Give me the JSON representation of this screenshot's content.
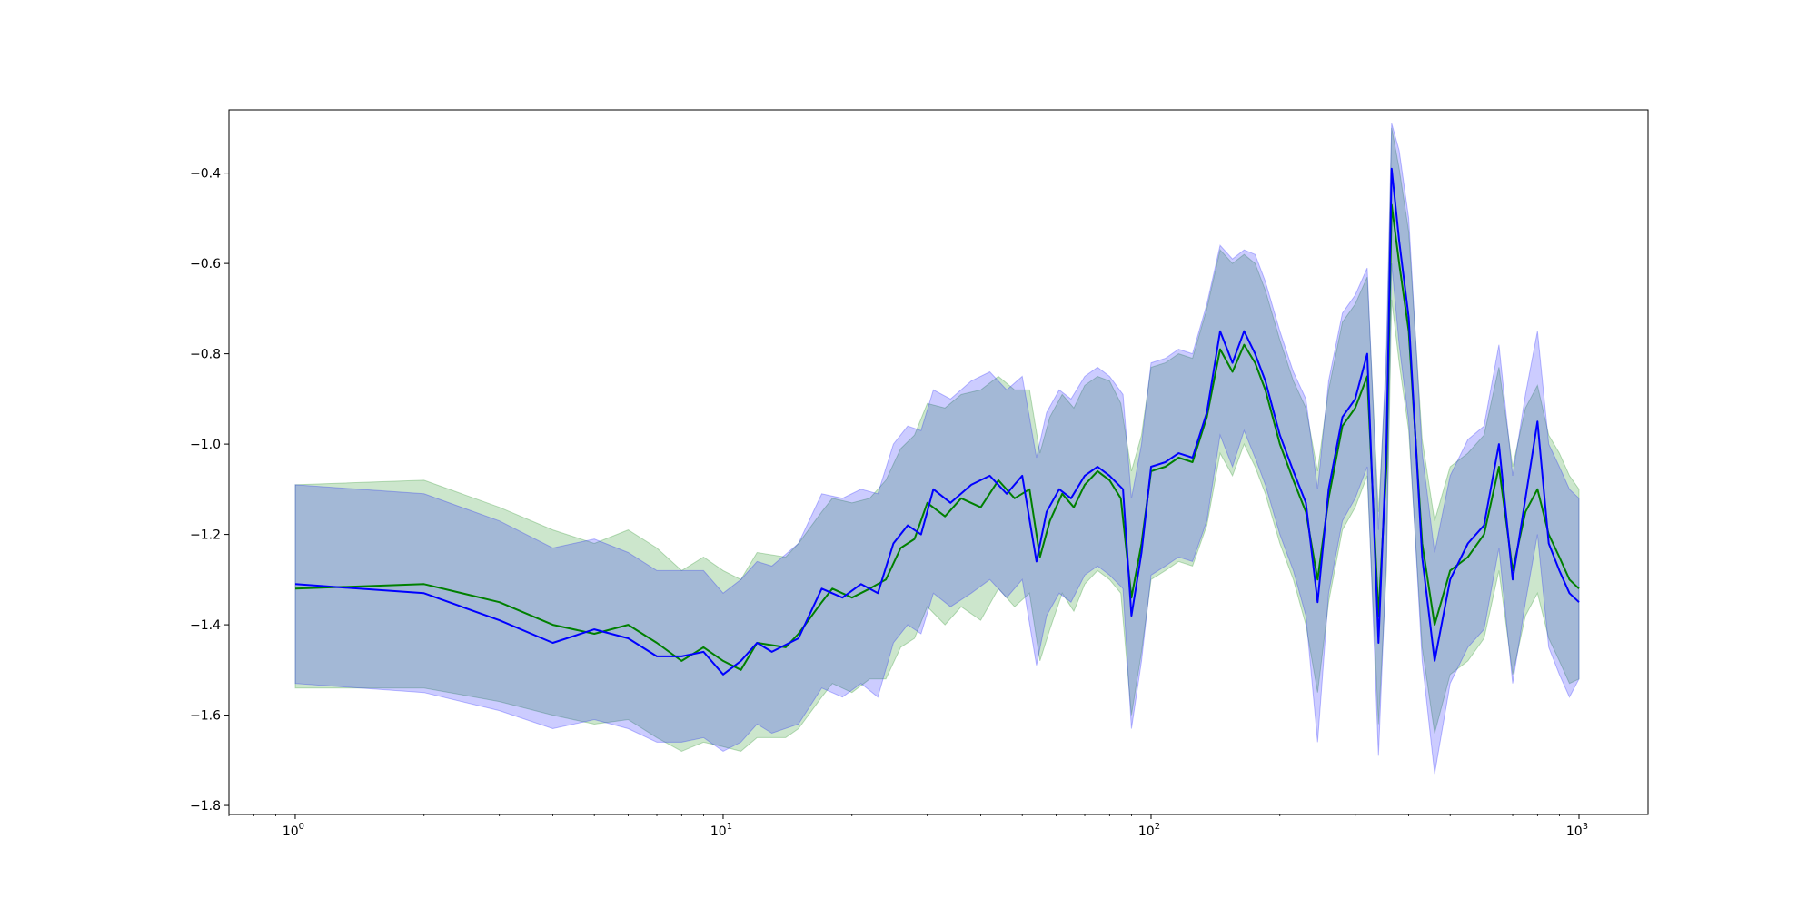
{
  "chart_data": {
    "type": "line",
    "title": "",
    "xlabel": "",
    "ylabel": "",
    "xscale": "log",
    "xlim": [
      0.7,
      1450
    ],
    "ylim": [
      -1.82,
      -0.26
    ],
    "grid": false,
    "legend": "none",
    "x_ticks": [
      {
        "value": 1,
        "base": "10",
        "exp": "0"
      },
      {
        "value": 10,
        "base": "10",
        "exp": "1"
      },
      {
        "value": 100,
        "base": "10",
        "exp": "2"
      },
      {
        "value": 1000,
        "base": "10",
        "exp": "3"
      }
    ],
    "y_ticks": [
      {
        "value": -1.8,
        "label": "−1.8"
      },
      {
        "value": -1.6,
        "label": "−1.6"
      },
      {
        "value": -1.4,
        "label": "−1.4"
      },
      {
        "value": -1.2,
        "label": "−1.2"
      },
      {
        "value": -1.0,
        "label": "−1.0"
      },
      {
        "value": -0.8,
        "label": "−0.8"
      },
      {
        "value": -0.6,
        "label": "−0.6"
      },
      {
        "value": -0.4,
        "label": "−0.4"
      }
    ],
    "series": [
      {
        "color": "#008000",
        "band_color": "#008000",
        "band_opacity": 0.2,
        "points": [
          [
            1,
            -1.32,
            -1.09,
            -1.54
          ],
          [
            2,
            -1.31,
            -1.08,
            -1.54
          ],
          [
            3,
            -1.35,
            -1.14,
            -1.57
          ],
          [
            4,
            -1.4,
            -1.19,
            -1.6
          ],
          [
            5,
            -1.42,
            -1.22,
            -1.62
          ],
          [
            6,
            -1.4,
            -1.19,
            -1.61
          ],
          [
            7,
            -1.44,
            -1.23,
            -1.65
          ],
          [
            8,
            -1.48,
            -1.28,
            -1.68
          ],
          [
            9,
            -1.45,
            -1.25,
            -1.66
          ],
          [
            10,
            -1.48,
            -1.28,
            -1.67
          ],
          [
            11,
            -1.5,
            -1.3,
            -1.68
          ],
          [
            12,
            -1.44,
            -1.24,
            -1.65
          ],
          [
            14,
            -1.45,
            -1.25,
            -1.65
          ],
          [
            15,
            -1.42,
            -1.22,
            -1.63
          ],
          [
            17,
            -1.35,
            -1.15,
            -1.56
          ],
          [
            18,
            -1.32,
            -1.12,
            -1.53
          ],
          [
            20,
            -1.34,
            -1.13,
            -1.55
          ],
          [
            22,
            -1.32,
            -1.12,
            -1.52
          ],
          [
            24,
            -1.3,
            -1.08,
            -1.52
          ],
          [
            26,
            -1.23,
            -1.01,
            -1.45
          ],
          [
            28,
            -1.21,
            -0.98,
            -1.43
          ],
          [
            30,
            -1.13,
            -0.91,
            -1.36
          ],
          [
            33,
            -1.16,
            -0.92,
            -1.4
          ],
          [
            36,
            -1.12,
            -0.89,
            -1.36
          ],
          [
            40,
            -1.14,
            -0.88,
            -1.39
          ],
          [
            44,
            -1.08,
            -0.85,
            -1.32
          ],
          [
            48,
            -1.12,
            -0.88,
            -1.36
          ],
          [
            52,
            -1.1,
            -0.88,
            -1.33
          ],
          [
            55,
            -1.25,
            -1.02,
            -1.48
          ],
          [
            58,
            -1.17,
            -0.94,
            -1.41
          ],
          [
            62,
            -1.11,
            -0.89,
            -1.33
          ],
          [
            66,
            -1.14,
            -0.92,
            -1.37
          ],
          [
            70,
            -1.09,
            -0.87,
            -1.31
          ],
          [
            75,
            -1.06,
            -0.85,
            -1.28
          ],
          [
            80,
            -1.08,
            -0.86,
            -1.3
          ],
          [
            85,
            -1.12,
            -0.91,
            -1.33
          ],
          [
            90,
            -1.34,
            -1.06,
            -1.6
          ],
          [
            95,
            -1.22,
            -0.98,
            -1.46
          ],
          [
            100,
            -1.06,
            -0.83,
            -1.3
          ],
          [
            108,
            -1.05,
            -0.82,
            -1.28
          ],
          [
            116,
            -1.03,
            -0.8,
            -1.26
          ],
          [
            125,
            -1.04,
            -0.81,
            -1.27
          ],
          [
            135,
            -0.94,
            -0.7,
            -1.18
          ],
          [
            145,
            -0.79,
            -0.57,
            -1.02
          ],
          [
            155,
            -0.84,
            -0.6,
            -1.07
          ],
          [
            165,
            -0.78,
            -0.58,
            -1.0
          ],
          [
            175,
            -0.82,
            -0.6,
            -1.05
          ],
          [
            185,
            -0.88,
            -0.66,
            -1.11
          ],
          [
            200,
            -1.0,
            -0.77,
            -1.22
          ],
          [
            215,
            -1.08,
            -0.86,
            -1.3
          ],
          [
            230,
            -1.15,
            -0.92,
            -1.4
          ],
          [
            245,
            -1.3,
            -1.06,
            -1.55
          ],
          [
            260,
            -1.12,
            -0.88,
            -1.35
          ],
          [
            280,
            -0.96,
            -0.73,
            -1.19
          ],
          [
            300,
            -0.92,
            -0.69,
            -1.14
          ],
          [
            320,
            -0.85,
            -0.63,
            -1.07
          ],
          [
            340,
            -1.38,
            -1.15,
            -1.62
          ],
          [
            355,
            -1.05,
            -0.82,
            -1.28
          ],
          [
            365,
            -0.47,
            -0.3,
            -0.68
          ],
          [
            380,
            -0.6,
            -0.39,
            -0.82
          ],
          [
            400,
            -0.75,
            -0.53,
            -0.97
          ],
          [
            430,
            -1.22,
            -0.99,
            -1.45
          ],
          [
            460,
            -1.4,
            -1.17,
            -1.64
          ],
          [
            500,
            -1.28,
            -1.05,
            -1.51
          ],
          [
            550,
            -1.25,
            -1.02,
            -1.48
          ],
          [
            600,
            -1.2,
            -0.98,
            -1.43
          ],
          [
            650,
            -1.05,
            -0.83,
            -1.28
          ],
          [
            700,
            -1.28,
            -1.05,
            -1.51
          ],
          [
            750,
            -1.15,
            -0.92,
            -1.38
          ],
          [
            800,
            -1.1,
            -0.87,
            -1.33
          ],
          [
            850,
            -1.2,
            -0.98,
            -1.43
          ],
          [
            900,
            -1.25,
            -1.02,
            -1.48
          ],
          [
            950,
            -1.3,
            -1.07,
            -1.53
          ],
          [
            1000,
            -1.32,
            -1.1,
            -1.52
          ]
        ]
      },
      {
        "color": "#0000ff",
        "band_color": "#0000ff",
        "band_opacity": 0.2,
        "points": [
          [
            1,
            -1.31,
            -1.09,
            -1.53
          ],
          [
            2,
            -1.33,
            -1.11,
            -1.55
          ],
          [
            3,
            -1.39,
            -1.17,
            -1.59
          ],
          [
            4,
            -1.44,
            -1.23,
            -1.63
          ],
          [
            5,
            -1.41,
            -1.21,
            -1.61
          ],
          [
            6,
            -1.43,
            -1.24,
            -1.63
          ],
          [
            7,
            -1.47,
            -1.28,
            -1.66
          ],
          [
            8,
            -1.47,
            -1.28,
            -1.66
          ],
          [
            9,
            -1.46,
            -1.28,
            -1.65
          ],
          [
            10,
            -1.51,
            -1.33,
            -1.68
          ],
          [
            11,
            -1.48,
            -1.3,
            -1.66
          ],
          [
            12,
            -1.44,
            -1.26,
            -1.62
          ],
          [
            13,
            -1.46,
            -1.27,
            -1.64
          ],
          [
            15,
            -1.43,
            -1.22,
            -1.62
          ],
          [
            17,
            -1.32,
            -1.11,
            -1.54
          ],
          [
            19,
            -1.34,
            -1.12,
            -1.56
          ],
          [
            21,
            -1.31,
            -1.1,
            -1.53
          ],
          [
            23,
            -1.33,
            -1.11,
            -1.56
          ],
          [
            25,
            -1.22,
            -1.0,
            -1.44
          ],
          [
            27,
            -1.18,
            -0.96,
            -1.4
          ],
          [
            29,
            -1.2,
            -0.97,
            -1.42
          ],
          [
            31,
            -1.1,
            -0.88,
            -1.33
          ],
          [
            34,
            -1.13,
            -0.9,
            -1.36
          ],
          [
            38,
            -1.09,
            -0.86,
            -1.33
          ],
          [
            42,
            -1.07,
            -0.84,
            -1.3
          ],
          [
            46,
            -1.11,
            -0.88,
            -1.34
          ],
          [
            50,
            -1.07,
            -0.85,
            -1.3
          ],
          [
            54,
            -1.26,
            -1.03,
            -1.49
          ],
          [
            57,
            -1.15,
            -0.93,
            -1.38
          ],
          [
            61,
            -1.1,
            -0.88,
            -1.33
          ],
          [
            65,
            -1.12,
            -0.9,
            -1.35
          ],
          [
            70,
            -1.07,
            -0.85,
            -1.29
          ],
          [
            75,
            -1.05,
            -0.83,
            -1.27
          ],
          [
            80,
            -1.07,
            -0.85,
            -1.29
          ],
          [
            86,
            -1.1,
            -0.89,
            -1.32
          ],
          [
            90,
            -1.38,
            -1.12,
            -1.63
          ],
          [
            95,
            -1.24,
            -1.0,
            -1.48
          ],
          [
            100,
            -1.05,
            -0.82,
            -1.29
          ],
          [
            108,
            -1.04,
            -0.81,
            -1.27
          ],
          [
            116,
            -1.02,
            -0.79,
            -1.25
          ],
          [
            125,
            -1.03,
            -0.8,
            -1.26
          ],
          [
            135,
            -0.93,
            -0.69,
            -1.17
          ],
          [
            145,
            -0.75,
            -0.56,
            -0.98
          ],
          [
            155,
            -0.82,
            -0.59,
            -1.05
          ],
          [
            165,
            -0.75,
            -0.57,
            -0.97
          ],
          [
            175,
            -0.8,
            -0.58,
            -1.03
          ],
          [
            185,
            -0.86,
            -0.64,
            -1.09
          ],
          [
            200,
            -0.98,
            -0.75,
            -1.2
          ],
          [
            215,
            -1.06,
            -0.84,
            -1.28
          ],
          [
            230,
            -1.13,
            -0.9,
            -1.38
          ],
          [
            245,
            -1.35,
            -1.1,
            -1.66
          ],
          [
            260,
            -1.1,
            -0.86,
            -1.33
          ],
          [
            280,
            -0.94,
            -0.71,
            -1.17
          ],
          [
            300,
            -0.9,
            -0.67,
            -1.12
          ],
          [
            320,
            -0.8,
            -0.61,
            -1.05
          ],
          [
            340,
            -1.44,
            -1.19,
            -1.69
          ],
          [
            355,
            -1.0,
            -0.78,
            -1.25
          ],
          [
            365,
            -0.39,
            -0.29,
            -0.6
          ],
          [
            380,
            -0.55,
            -0.35,
            -0.78
          ],
          [
            400,
            -0.72,
            -0.5,
            -0.95
          ],
          [
            430,
            -1.25,
            -1.02,
            -1.48
          ],
          [
            460,
            -1.48,
            -1.24,
            -1.73
          ],
          [
            500,
            -1.3,
            -1.07,
            -1.53
          ],
          [
            550,
            -1.22,
            -0.99,
            -1.45
          ],
          [
            600,
            -1.18,
            -0.96,
            -1.41
          ],
          [
            650,
            -1.0,
            -0.78,
            -1.23
          ],
          [
            700,
            -1.3,
            -1.07,
            -1.53
          ],
          [
            750,
            -1.12,
            -0.89,
            -1.35
          ],
          [
            800,
            -0.95,
            -0.75,
            -1.2
          ],
          [
            850,
            -1.22,
            -1.0,
            -1.45
          ],
          [
            900,
            -1.28,
            -1.05,
            -1.51
          ],
          [
            950,
            -1.33,
            -1.1,
            -1.56
          ],
          [
            1000,
            -1.35,
            -1.12,
            -1.52
          ]
        ]
      }
    ]
  }
}
